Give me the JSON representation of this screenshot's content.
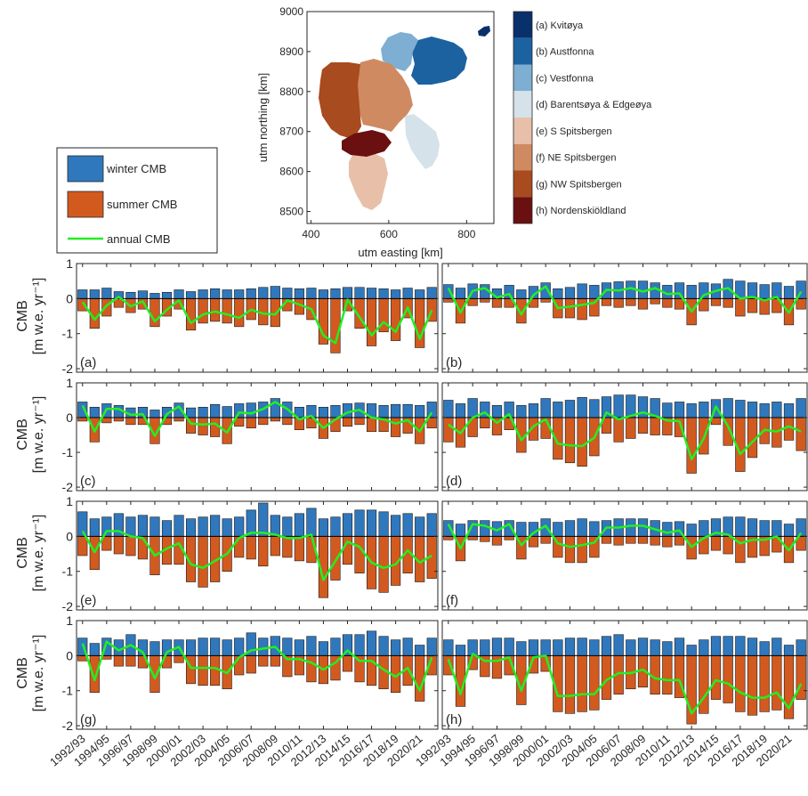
{
  "colors": {
    "winter": "#2f78bd",
    "summer": "#d35a1f",
    "annual": "#22ee22",
    "axis": "#262626",
    "region_a": "#08306b",
    "region_b": "#1c62a0",
    "region_c": "#7eaed2",
    "region_d": "#d6e2ea",
    "region_e": "#e8bfa8",
    "region_f": "#cf8a62",
    "region_g": "#a84b1e",
    "region_h": "#6a1010"
  },
  "map": {
    "xlabel": "utm easting [km]",
    "ylabel": "utm northing [km]",
    "xticks": [
      "400",
      "600",
      "800"
    ],
    "yticks": [
      "8500",
      "8600",
      "8700",
      "8800",
      "8900",
      "9000"
    ],
    "xlim": [
      390,
      870
    ],
    "ylim": [
      8470,
      9000
    ]
  },
  "region_legend": [
    {
      "label": "(a) Kvitøya",
      "color": "#08306b"
    },
    {
      "label": "(b) Austfonna",
      "color": "#1c62a0"
    },
    {
      "label": "(c) Vestfonna",
      "color": "#7eaed2"
    },
    {
      "label": "(d) Barentsøya & Edgeøya",
      "color": "#d6e2ea"
    },
    {
      "label": "(e) S Spitsbergen",
      "color": "#e8bfa8"
    },
    {
      "label": "(f) NE Spitsbergen",
      "color": "#cf8a62"
    },
    {
      "label": "(g) NW Spitsbergen",
      "color": "#a84b1e"
    },
    {
      "label": "(h) Nordenskiöldland",
      "color": "#6a1010"
    }
  ],
  "series_legend": {
    "winter": "winter CMB",
    "summer": "summer CMB",
    "annual": "annual CMB"
  },
  "ylabel_line1": "CMB",
  "ylabel_line2": "[m w.e. yr⁻¹]",
  "chart_data": {
    "type": "bar",
    "ylim": [
      -2.1,
      1.0
    ],
    "yticks": [
      1,
      0,
      -1,
      -2
    ],
    "x": [
      "1992/93",
      "1993/94",
      "1994/95",
      "1995/96",
      "1996/97",
      "1997/98",
      "1998/99",
      "1999/00",
      "2000/01",
      "2001/02",
      "2002/03",
      "2003/04",
      "2004/05",
      "2005/06",
      "2006/07",
      "2007/08",
      "2008/09",
      "2009/10",
      "2010/11",
      "2011/12",
      "2012/13",
      "2013/14",
      "2014/15",
      "2015/16",
      "2016/17",
      "2017/18",
      "2018/19",
      "2019/20",
      "2020/21",
      "2021/22"
    ],
    "xtick_labels": [
      "1992/93",
      "1994/95",
      "1996/97",
      "1998/99",
      "2000/01",
      "2002/03",
      "2004/05",
      "2006/07",
      "2008/09",
      "2010/11",
      "2012/13",
      "2014/15",
      "2016/17",
      "2018/19",
      "2020/21"
    ],
    "panels": [
      {
        "label": "(a)",
        "winter": [
          0.25,
          0.25,
          0.3,
          0.2,
          0.18,
          0.22,
          0.15,
          0.18,
          0.25,
          0.2,
          0.25,
          0.28,
          0.25,
          0.25,
          0.28,
          0.32,
          0.35,
          0.3,
          0.28,
          0.3,
          0.25,
          0.28,
          0.32,
          0.32,
          0.3,
          0.28,
          0.25,
          0.3,
          0.25,
          0.32
        ],
        "summer": [
          -0.35,
          -0.85,
          -0.5,
          -0.25,
          -0.4,
          -0.3,
          -0.8,
          -0.5,
          -0.3,
          -0.9,
          -0.7,
          -0.65,
          -0.7,
          -0.8,
          -0.6,
          -0.75,
          -0.8,
          -0.35,
          -0.45,
          -0.6,
          -1.3,
          -1.55,
          -0.35,
          -0.85,
          -1.35,
          -0.95,
          -1.2,
          -0.55,
          -1.4,
          -0.65
        ],
        "annual": [
          -0.1,
          -0.6,
          -0.2,
          0.05,
          -0.22,
          -0.08,
          -0.65,
          -0.32,
          -0.05,
          -0.7,
          -0.45,
          -0.37,
          -0.45,
          -0.55,
          -0.32,
          -0.43,
          -0.45,
          -0.05,
          -0.17,
          -0.3,
          -1.05,
          -1.27,
          -0.03,
          -0.53,
          -1.05,
          -0.67,
          -0.95,
          -0.25,
          -1.15,
          -0.33
        ]
      },
      {
        "label": "(b)",
        "winter": [
          0.4,
          0.3,
          0.42,
          0.4,
          0.28,
          0.38,
          0.25,
          0.35,
          0.45,
          0.28,
          0.32,
          0.42,
          0.38,
          0.45,
          0.48,
          0.5,
          0.5,
          0.45,
          0.38,
          0.45,
          0.38,
          0.45,
          0.42,
          0.55,
          0.5,
          0.45,
          0.4,
          0.45,
          0.35,
          0.5
        ],
        "summer": [
          -0.1,
          -0.7,
          -0.2,
          -0.1,
          -0.25,
          -0.25,
          -0.7,
          -0.25,
          -0.1,
          -0.55,
          -0.55,
          -0.6,
          -0.5,
          -0.2,
          -0.25,
          -0.2,
          -0.3,
          -0.15,
          -0.25,
          -0.3,
          -0.75,
          -0.35,
          -0.2,
          -0.25,
          -0.5,
          -0.4,
          -0.45,
          -0.4,
          -0.75,
          -0.3
        ],
        "annual": [
          0.3,
          -0.4,
          0.22,
          0.3,
          0.03,
          0.13,
          -0.45,
          0.1,
          0.35,
          -0.27,
          -0.23,
          -0.18,
          -0.12,
          0.25,
          0.23,
          0.3,
          0.2,
          0.3,
          0.13,
          0.15,
          -0.37,
          0.1,
          0.22,
          0.3,
          0.0,
          0.05,
          -0.05,
          0.05,
          -0.4,
          0.2
        ]
      },
      {
        "label": "(c)",
        "winter": [
          0.45,
          0.3,
          0.4,
          0.35,
          0.28,
          0.3,
          0.22,
          0.3,
          0.42,
          0.28,
          0.3,
          0.38,
          0.32,
          0.4,
          0.42,
          0.45,
          0.55,
          0.45,
          0.3,
          0.35,
          0.3,
          0.35,
          0.4,
          0.42,
          0.4,
          0.35,
          0.38,
          0.38,
          0.35,
          0.45
        ],
        "summer": [
          -0.1,
          -0.7,
          -0.15,
          -0.1,
          -0.2,
          -0.2,
          -0.75,
          -0.2,
          -0.1,
          -0.45,
          -0.5,
          -0.55,
          -0.75,
          -0.25,
          -0.3,
          -0.2,
          -0.1,
          -0.2,
          -0.35,
          -0.3,
          -0.6,
          -0.4,
          -0.25,
          -0.2,
          -0.4,
          -0.4,
          -0.55,
          -0.45,
          -0.75,
          -0.3
        ],
        "annual": [
          0.35,
          -0.4,
          0.25,
          0.25,
          0.08,
          0.1,
          -0.53,
          0.1,
          0.32,
          -0.17,
          -0.2,
          -0.17,
          -0.43,
          0.15,
          0.12,
          0.25,
          0.45,
          0.25,
          -0.05,
          0.05,
          -0.3,
          -0.05,
          0.15,
          0.22,
          0.0,
          -0.05,
          -0.17,
          -0.07,
          -0.4,
          0.15
        ]
      },
      {
        "label": "(d)",
        "winter": [
          0.5,
          0.4,
          0.55,
          0.45,
          0.35,
          0.45,
          0.35,
          0.4,
          0.55,
          0.45,
          0.5,
          0.58,
          0.52,
          0.6,
          0.65,
          0.65,
          0.6,
          0.55,
          0.42,
          0.45,
          0.4,
          0.45,
          0.52,
          0.55,
          0.5,
          0.45,
          0.4,
          0.45,
          0.4,
          0.55
        ],
        "summer": [
          -0.7,
          -0.85,
          -0.55,
          -0.3,
          -0.5,
          -0.35,
          -1.0,
          -0.65,
          -0.6,
          -1.2,
          -1.3,
          -1.4,
          -1.1,
          -0.45,
          -0.7,
          -0.6,
          -0.45,
          -0.5,
          -0.5,
          -0.55,
          -1.6,
          -1.05,
          -0.2,
          -0.8,
          -1.55,
          -1.15,
          -0.75,
          -0.85,
          -0.65,
          -0.95
        ],
        "annual": [
          -0.2,
          -0.45,
          0.0,
          0.15,
          -0.15,
          0.1,
          -0.65,
          -0.25,
          -0.05,
          -0.75,
          -0.8,
          -0.82,
          -0.58,
          0.15,
          -0.05,
          0.05,
          0.15,
          0.05,
          -0.08,
          -0.1,
          -1.2,
          -0.6,
          0.32,
          -0.25,
          -1.05,
          -0.7,
          -0.35,
          -0.4,
          -0.25,
          -0.4
        ]
      },
      {
        "label": "(e)",
        "winter": [
          0.7,
          0.5,
          0.55,
          0.65,
          0.55,
          0.6,
          0.55,
          0.45,
          0.6,
          0.5,
          0.55,
          0.6,
          0.5,
          0.55,
          0.75,
          0.95,
          0.6,
          0.55,
          0.65,
          0.8,
          0.5,
          0.55,
          0.65,
          0.75,
          0.75,
          0.7,
          0.6,
          0.65,
          0.55,
          0.65
        ],
        "summer": [
          -0.55,
          -0.95,
          -0.4,
          -0.5,
          -0.55,
          -0.65,
          -1.1,
          -0.8,
          -0.8,
          -1.3,
          -1.45,
          -1.3,
          -1.0,
          -0.6,
          -0.65,
          -0.85,
          -0.55,
          -0.6,
          -0.7,
          -0.75,
          -1.75,
          -1.25,
          -0.8,
          -1.05,
          -1.5,
          -1.6,
          -1.4,
          -1.05,
          -1.3,
          -1.2
        ],
        "annual": [
          0.15,
          -0.45,
          0.15,
          0.15,
          0.0,
          -0.05,
          -0.55,
          -0.35,
          -0.2,
          -0.8,
          -0.9,
          -0.7,
          -0.5,
          -0.05,
          0.1,
          0.1,
          0.05,
          -0.05,
          -0.05,
          0.05,
          -1.25,
          -0.7,
          -0.15,
          -0.3,
          -0.75,
          -0.9,
          -0.8,
          -0.4,
          -0.75,
          -0.55
        ]
      },
      {
        "label": "(f)",
        "winter": [
          0.45,
          0.35,
          0.45,
          0.45,
          0.42,
          0.45,
          0.4,
          0.4,
          0.5,
          0.4,
          0.45,
          0.5,
          0.42,
          0.45,
          0.5,
          0.5,
          0.5,
          0.45,
          0.4,
          0.42,
          0.35,
          0.45,
          0.5,
          0.55,
          0.55,
          0.5,
          0.45,
          0.45,
          0.35,
          0.5
        ],
        "summer": [
          -0.1,
          -0.7,
          -0.1,
          -0.15,
          -0.25,
          -0.1,
          -0.65,
          -0.3,
          -0.2,
          -0.6,
          -0.75,
          -0.75,
          -0.6,
          -0.2,
          -0.25,
          -0.2,
          -0.2,
          -0.25,
          -0.3,
          -0.25,
          -0.65,
          -0.5,
          -0.4,
          -0.5,
          -0.75,
          -0.6,
          -0.55,
          -0.45,
          -0.75,
          -0.4
        ],
        "annual": [
          0.35,
          -0.35,
          0.35,
          0.3,
          0.17,
          0.35,
          -0.25,
          0.1,
          0.3,
          -0.2,
          -0.3,
          -0.25,
          -0.18,
          0.25,
          0.25,
          0.3,
          0.3,
          0.2,
          0.1,
          0.17,
          -0.3,
          -0.05,
          0.1,
          0.05,
          -0.2,
          -0.1,
          -0.1,
          0.0,
          -0.4,
          0.1
        ]
      },
      {
        "label": "(g)",
        "winter": [
          0.5,
          0.35,
          0.5,
          0.45,
          0.6,
          0.45,
          0.4,
          0.45,
          0.45,
          0.45,
          0.5,
          0.5,
          0.45,
          0.5,
          0.65,
          0.5,
          0.55,
          0.5,
          0.45,
          0.55,
          0.4,
          0.5,
          0.6,
          0.6,
          0.7,
          0.55,
          0.45,
          0.5,
          0.3,
          0.5
        ],
        "summer": [
          -0.15,
          -1.05,
          -0.1,
          -0.3,
          -0.3,
          -0.35,
          -1.05,
          -0.35,
          -0.2,
          -0.8,
          -0.85,
          -0.85,
          -0.95,
          -0.55,
          -0.5,
          -0.3,
          -0.3,
          -0.6,
          -0.55,
          -0.75,
          -0.8,
          -0.7,
          -0.45,
          -0.75,
          -0.85,
          -0.95,
          -1.05,
          -0.85,
          -1.3,
          -0.55
        ],
        "annual": [
          0.35,
          -0.7,
          0.4,
          0.15,
          0.3,
          0.1,
          -0.65,
          0.1,
          0.25,
          -0.35,
          -0.35,
          -0.35,
          -0.5,
          -0.05,
          0.15,
          0.2,
          0.25,
          -0.1,
          -0.1,
          -0.2,
          -0.4,
          -0.2,
          0.15,
          -0.15,
          -0.15,
          -0.4,
          -0.6,
          -0.35,
          -1.0,
          -0.05
        ]
      },
      {
        "label": "(h)",
        "winter": [
          0.45,
          0.3,
          0.45,
          0.45,
          0.5,
          0.5,
          0.4,
          0.45,
          0.45,
          0.45,
          0.5,
          0.5,
          0.45,
          0.55,
          0.6,
          0.45,
          0.5,
          0.45,
          0.4,
          0.5,
          0.3,
          0.45,
          0.55,
          0.55,
          0.55,
          0.5,
          0.4,
          0.5,
          0.3,
          0.45
        ],
        "summer": [
          -0.55,
          -1.45,
          -0.4,
          -0.6,
          -0.65,
          -0.55,
          -1.4,
          -0.5,
          -0.45,
          -1.6,
          -1.65,
          -1.6,
          -1.55,
          -1.25,
          -1.1,
          -0.95,
          -0.9,
          -1.1,
          -1.1,
          -1.2,
          -1.95,
          -1.65,
          -1.25,
          -1.35,
          -1.6,
          -1.7,
          -1.6,
          -1.55,
          -1.8,
          -1.25
        ],
        "annual": [
          -0.1,
          -1.1,
          0.05,
          -0.15,
          -0.15,
          -0.05,
          -1.0,
          -0.05,
          0.0,
          -1.15,
          -1.15,
          -1.1,
          -1.1,
          -0.7,
          -0.5,
          -0.5,
          -0.4,
          -0.65,
          -0.7,
          -0.7,
          -1.65,
          -1.2,
          -0.7,
          -0.8,
          -1.05,
          -1.2,
          -1.2,
          -1.05,
          -1.5,
          -0.8
        ]
      }
    ]
  }
}
